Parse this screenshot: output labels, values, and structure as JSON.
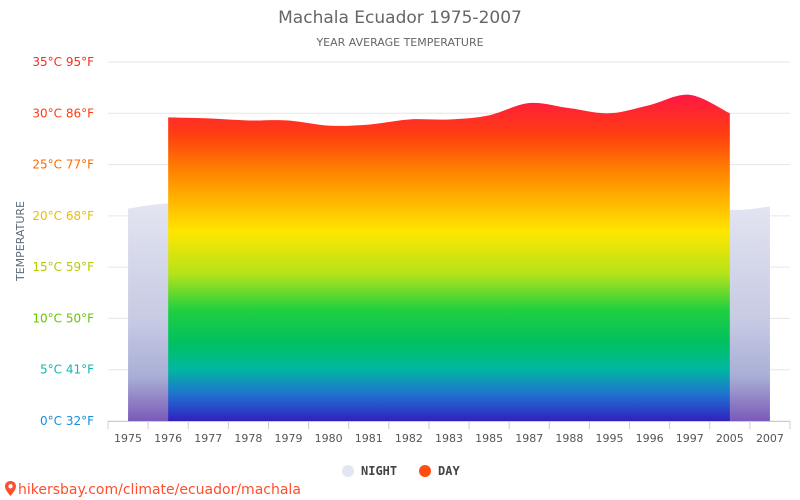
{
  "chart_data": {
    "type": "area",
    "title": "Machala Ecuador 1975-2007",
    "subtitle": "YEAR AVERAGE TEMPERATURE",
    "ylabel": "TEMPERATURE",
    "ylim": [
      0,
      35
    ],
    "y_ticks": [
      {
        "value": 35,
        "label": "35°C 95°F",
        "color": "#ff2a1a"
      },
      {
        "value": 30,
        "label": "30°C 86°F",
        "color": "#ff3d14"
      },
      {
        "value": 25,
        "label": "25°C 77°F",
        "color": "#ff6a00"
      },
      {
        "value": 20,
        "label": "20°C 68°F",
        "color": "#e8c000"
      },
      {
        "value": 15,
        "label": "15°C 59°F",
        "color": "#b8cc00"
      },
      {
        "value": 10,
        "label": "10°C 50°F",
        "color": "#66c800"
      },
      {
        "value": 5,
        "label": "5°C 41°F",
        "color": "#10b8b0"
      },
      {
        "value": 0,
        "label": "0°C 32°F",
        "color": "#1a8fd8"
      }
    ],
    "categories": [
      "1975",
      "1976",
      "1977",
      "1978",
      "1979",
      "1980",
      "1981",
      "1982",
      "1983",
      "1985",
      "1987",
      "1988",
      "1995",
      "1996",
      "1997",
      "2005",
      "2007"
    ],
    "series": [
      {
        "name": "NIGHT",
        "color": "#e3e5f1",
        "values": [
          20.7,
          21.2,
          20.8,
          20.9,
          20.6,
          21.0,
          20.7,
          20.8,
          20.8,
          20.7,
          21.2,
          20.9,
          20.7,
          20.1,
          21.6,
          20.6,
          20.9
        ]
      },
      {
        "name": "DAY",
        "color": "#ff4d10",
        "values": [
          null,
          29.6,
          29.5,
          29.3,
          29.3,
          28.8,
          28.9,
          29.4,
          29.4,
          29.8,
          31.0,
          30.5,
          30.0,
          30.8,
          31.8,
          30.0,
          null
        ]
      }
    ],
    "legend_position": "bottom-center",
    "grid": true
  },
  "source_text": "hikersbay.com/climate/ecuador/machala"
}
